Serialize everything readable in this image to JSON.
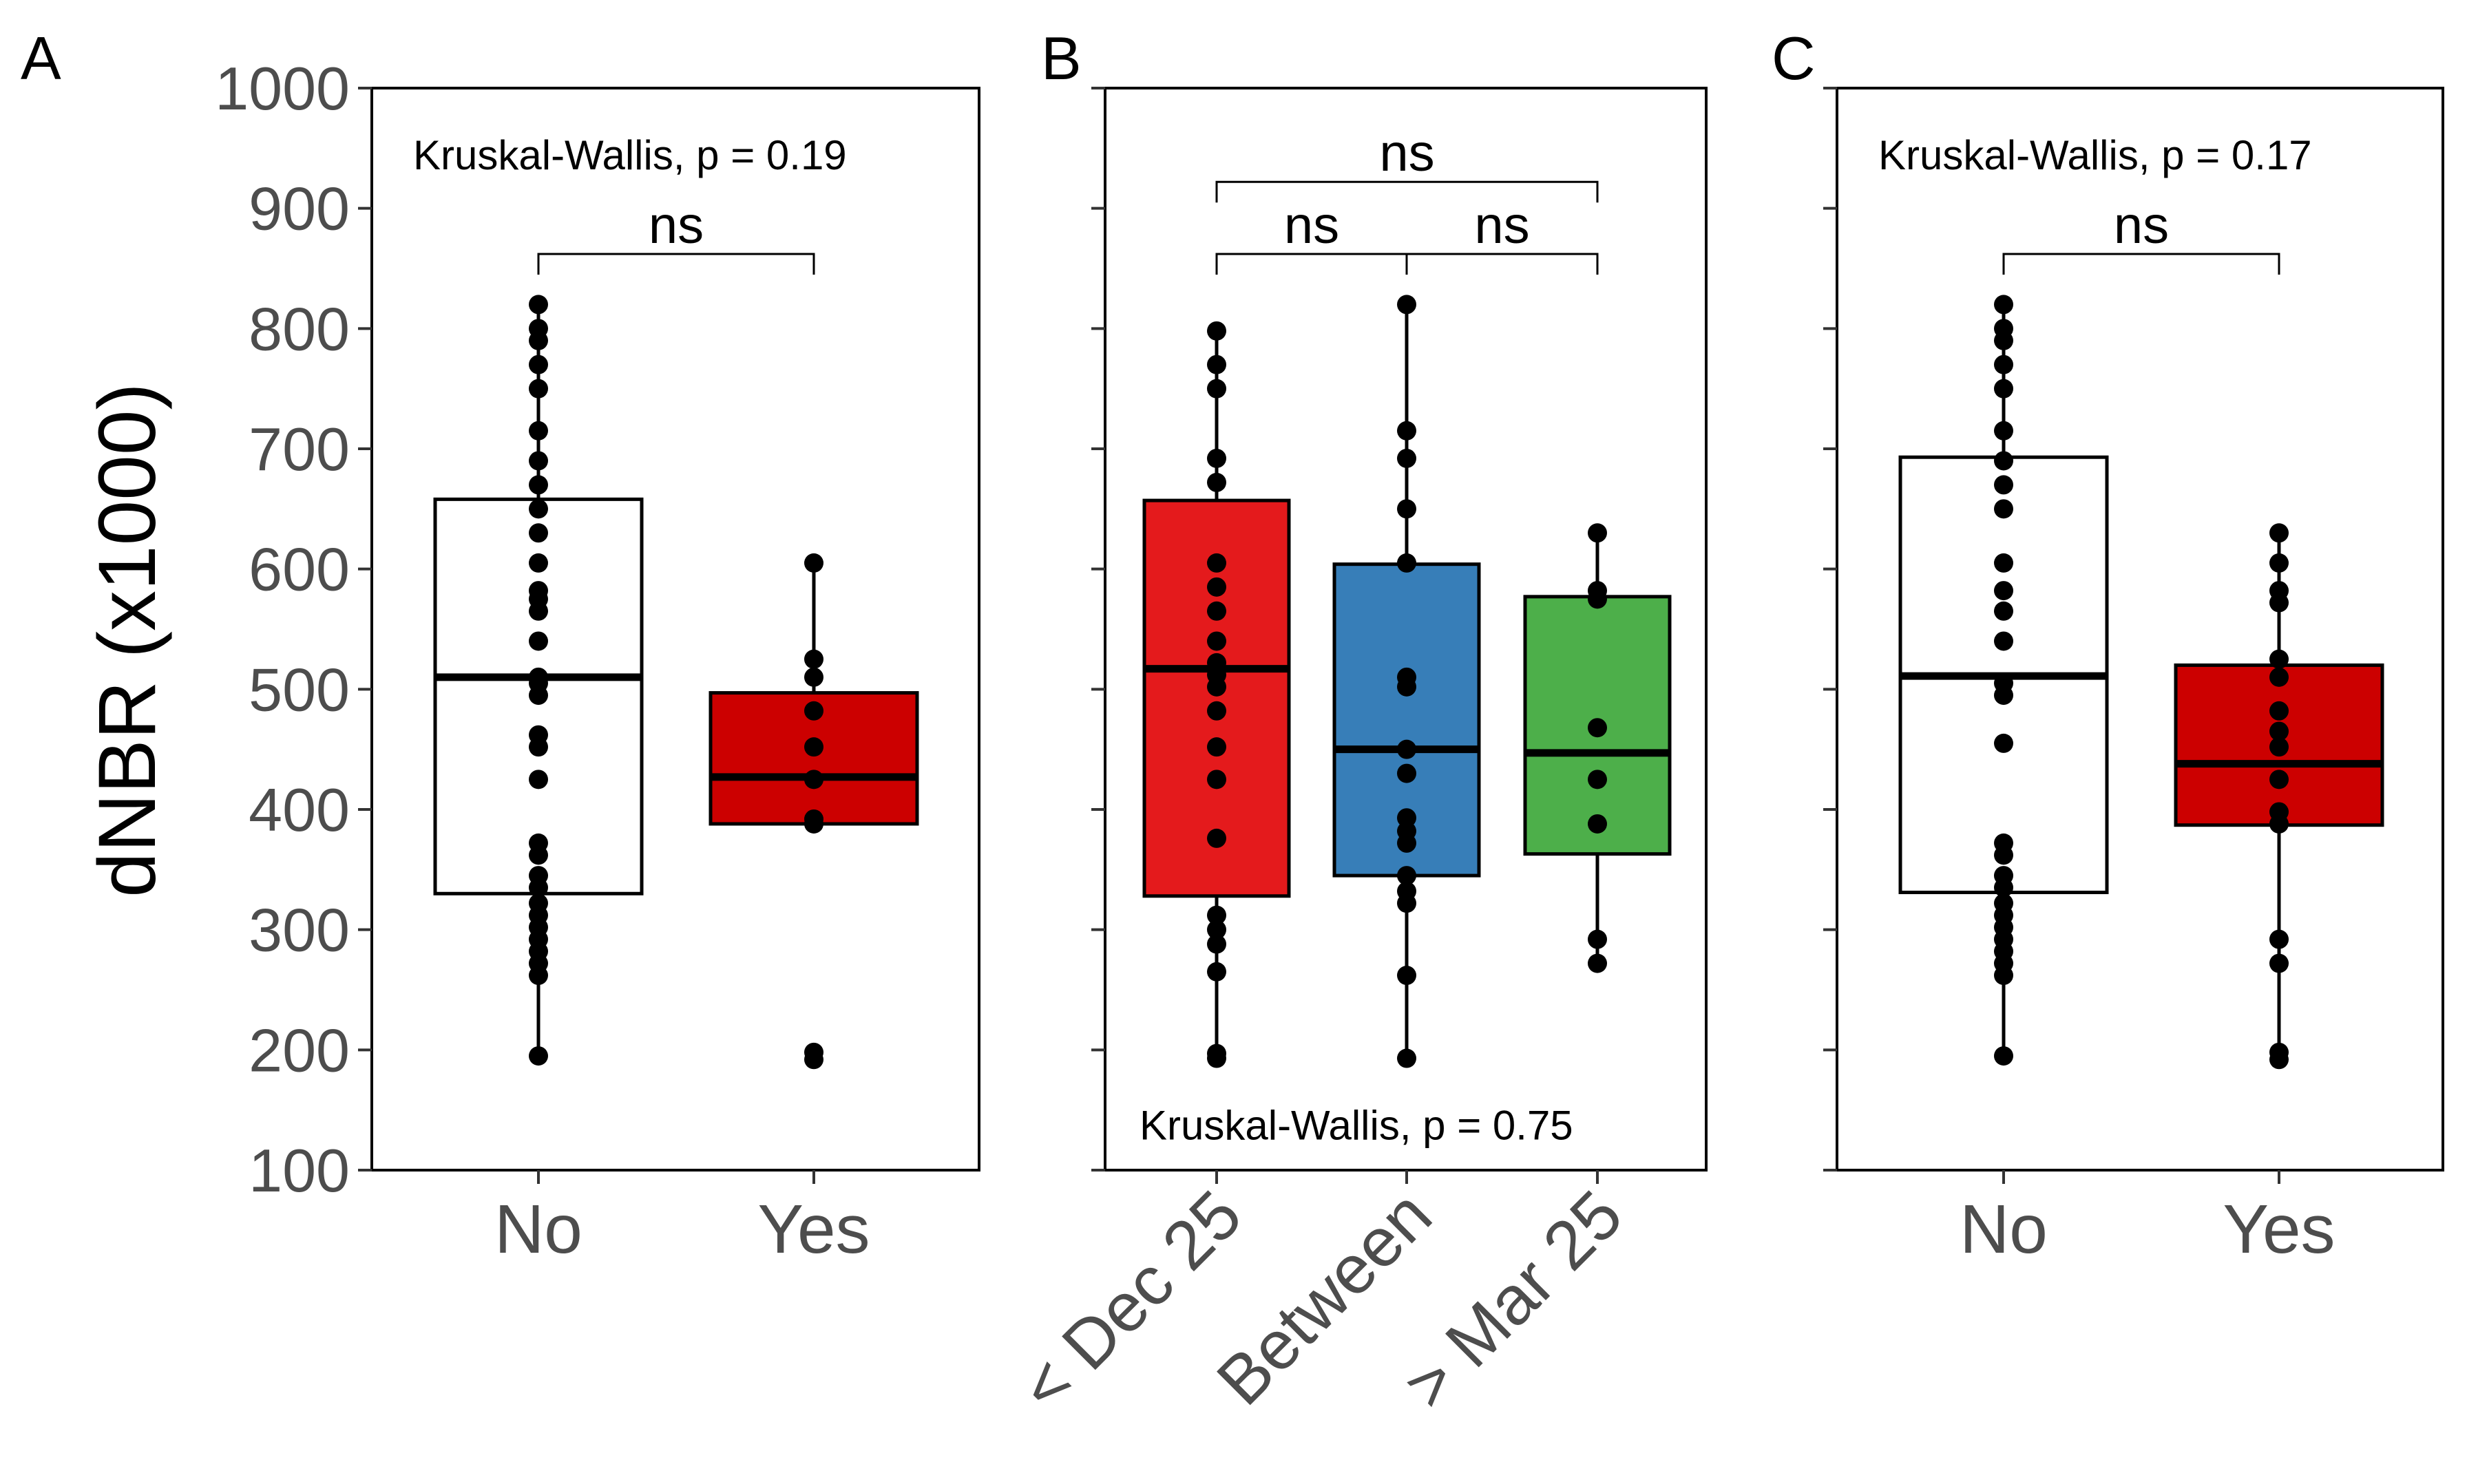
{
  "figure": {
    "ylabel": "dNBR (x1000)",
    "colors": {
      "white_box": "#ffffff",
      "red_box": "#cc0000",
      "set1_red": "#e41a1c",
      "set1_blue": "#377eb8",
      "set1_green": "#4daf4a",
      "points": "#000000"
    }
  },
  "chart_data": [
    {
      "type": "box",
      "panel_label": "A",
      "categories": [
        "No",
        "Yes"
      ],
      "box_colors": [
        "#ffffff",
        "#cc0000"
      ],
      "ylim": [
        100,
        1000
      ],
      "yticks": [
        100,
        200,
        300,
        400,
        500,
        600,
        700,
        800,
        900,
        1000
      ],
      "show_yticks": true,
      "boxes": [
        {
          "q1": 330,
          "median": 510,
          "q3": 658,
          "whisker_low": 195,
          "whisker_high": 820
        },
        {
          "q1": 388,
          "median": 427,
          "q3": 497,
          "whisker_low": 388,
          "whisker_high": 605
        }
      ],
      "points": [
        [
          195,
          262,
          272,
          282,
          292,
          302,
          312,
          322,
          335,
          345,
          362,
          372,
          425,
          452,
          462,
          495,
          505,
          510,
          540,
          565,
          575,
          582,
          605,
          630,
          650,
          670,
          690,
          715,
          750,
          770,
          790,
          800,
          820
        ],
        [
          192,
          198,
          388,
          392,
          425,
          452,
          482,
          510,
          525,
          605
        ]
      ],
      "annotation": {
        "text": "Kruskal-Wallis, p = 0.19",
        "y": 945,
        "at": "top"
      },
      "brackets": [
        {
          "from": 0,
          "to": 1,
          "y": 862,
          "label": "ns"
        }
      ]
    },
    {
      "type": "box",
      "panel_label": "B",
      "categories": [
        "< Dec 25",
        "Between",
        "> Mar 25"
      ],
      "box_colors": [
        "#e41a1c",
        "#377eb8",
        "#4daf4a"
      ],
      "ylim": [
        100,
        1000
      ],
      "yticks": [
        100,
        200,
        300,
        400,
        500,
        600,
        700,
        800,
        900,
        1000
      ],
      "show_yticks": false,
      "boxes": [
        {
          "q1": 328,
          "median": 517,
          "q3": 657,
          "whisker_low": 193,
          "whisker_high": 798
        },
        {
          "q1": 345,
          "median": 450,
          "q3": 604,
          "whisker_low": 193,
          "whisker_high": 820
        },
        {
          "q1": 363,
          "median": 447,
          "q3": 577,
          "whisker_low": 272,
          "whisker_high": 630
        }
      ],
      "points": [
        [
          193,
          197,
          265,
          288,
          300,
          312,
          376,
          425,
          452,
          482,
          502,
          512,
          522,
          540,
          565,
          585,
          605,
          672,
          692,
          750,
          770,
          798
        ],
        [
          193,
          262,
          322,
          332,
          345,
          372,
          382,
          393,
          430,
          450,
          502,
          510,
          605,
          650,
          692,
          715,
          820
        ],
        [
          272,
          292,
          388,
          425,
          468,
          575,
          582,
          630
        ]
      ],
      "annotation": {
        "text": "Kruskal-Wallis, p = 0.75",
        "y": 138,
        "at": "bottom"
      },
      "brackets": [
        {
          "from": 0,
          "to": 2,
          "y": 922,
          "label": "ns"
        },
        {
          "from": 0,
          "to": 1,
          "y": 862,
          "label": "ns"
        },
        {
          "from": 1,
          "to": 2,
          "y": 862,
          "label": "ns"
        }
      ]
    },
    {
      "type": "box",
      "panel_label": "C",
      "categories": [
        "No",
        "Yes"
      ],
      "box_colors": [
        "#ffffff",
        "#cc0000"
      ],
      "ylim": [
        100,
        1000
      ],
      "yticks": [
        100,
        200,
        300,
        400,
        500,
        600,
        700,
        800,
        900,
        1000
      ],
      "show_yticks": false,
      "boxes": [
        {
          "q1": 331,
          "median": 511,
          "q3": 693,
          "whisker_low": 195,
          "whisker_high": 820
        },
        {
          "q1": 387,
          "median": 438,
          "q3": 520,
          "whisker_low": 192,
          "whisker_high": 630
        }
      ],
      "points": [
        [
          195,
          262,
          272,
          282,
          292,
          302,
          312,
          322,
          335,
          345,
          362,
          372,
          455,
          495,
          505,
          540,
          565,
          582,
          605,
          650,
          670,
          690,
          715,
          750,
          770,
          790,
          800,
          820
        ],
        [
          192,
          198,
          272,
          292,
          388,
          398,
          425,
          452,
          465,
          482,
          510,
          525,
          572,
          582,
          605,
          630
        ]
      ],
      "annotation": {
        "text": "Kruskal-Wallis, p = 0.17",
        "y": 945,
        "at": "top"
      },
      "brackets": [
        {
          "from": 0,
          "to": 1,
          "y": 862,
          "label": "ns"
        }
      ]
    }
  ]
}
